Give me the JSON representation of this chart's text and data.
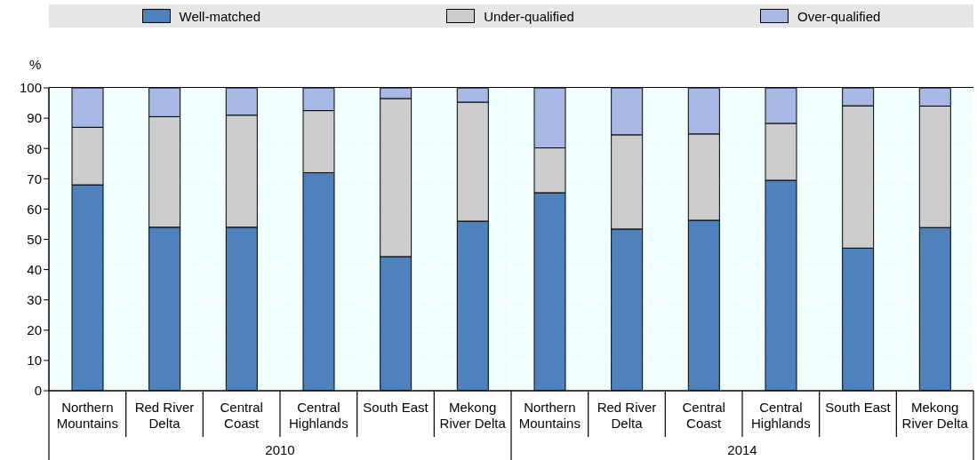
{
  "chart_data": {
    "type": "bar",
    "stacked": true,
    "ylabel": "%",
    "categories": [
      "Northern Mountains",
      "Red River Delta",
      "Central Coast",
      "Central Highlands",
      "South East",
      "Mekong River Delta",
      "Northern Mountains",
      "Red River Delta",
      "Central Coast",
      "Central Highlands",
      "South East",
      "Mekong River Delta"
    ],
    "annotations": [
      "2010",
      "2014"
    ],
    "series": [
      {
        "name": "Well-matched",
        "color": "#4f81bd",
        "values": [
          68,
          54,
          54,
          72,
          44.3,
          56,
          65.4,
          53.4,
          56.3,
          69.5,
          47.1,
          53.9
        ]
      },
      {
        "name": "Under-qualified",
        "color": "#cccccc",
        "values": [
          19,
          36.5,
          37,
          20.5,
          52.2,
          39.3,
          14.8,
          31.1,
          28.5,
          18.8,
          47,
          40.1
        ]
      },
      {
        "name": "Over-qualified",
        "color": "#a7b8e4",
        "values": [
          13,
          9.5,
          9,
          7.5,
          3.5,
          4.7,
          19.8,
          15.5,
          15.2,
          11.7,
          5.9,
          6
        ]
      }
    ],
    "ylim": [
      0,
      100
    ],
    "yticks": [
      0,
      10,
      20,
      30,
      40,
      50,
      60,
      70,
      80,
      90,
      100
    ],
    "grid": true,
    "legend": "top"
  }
}
